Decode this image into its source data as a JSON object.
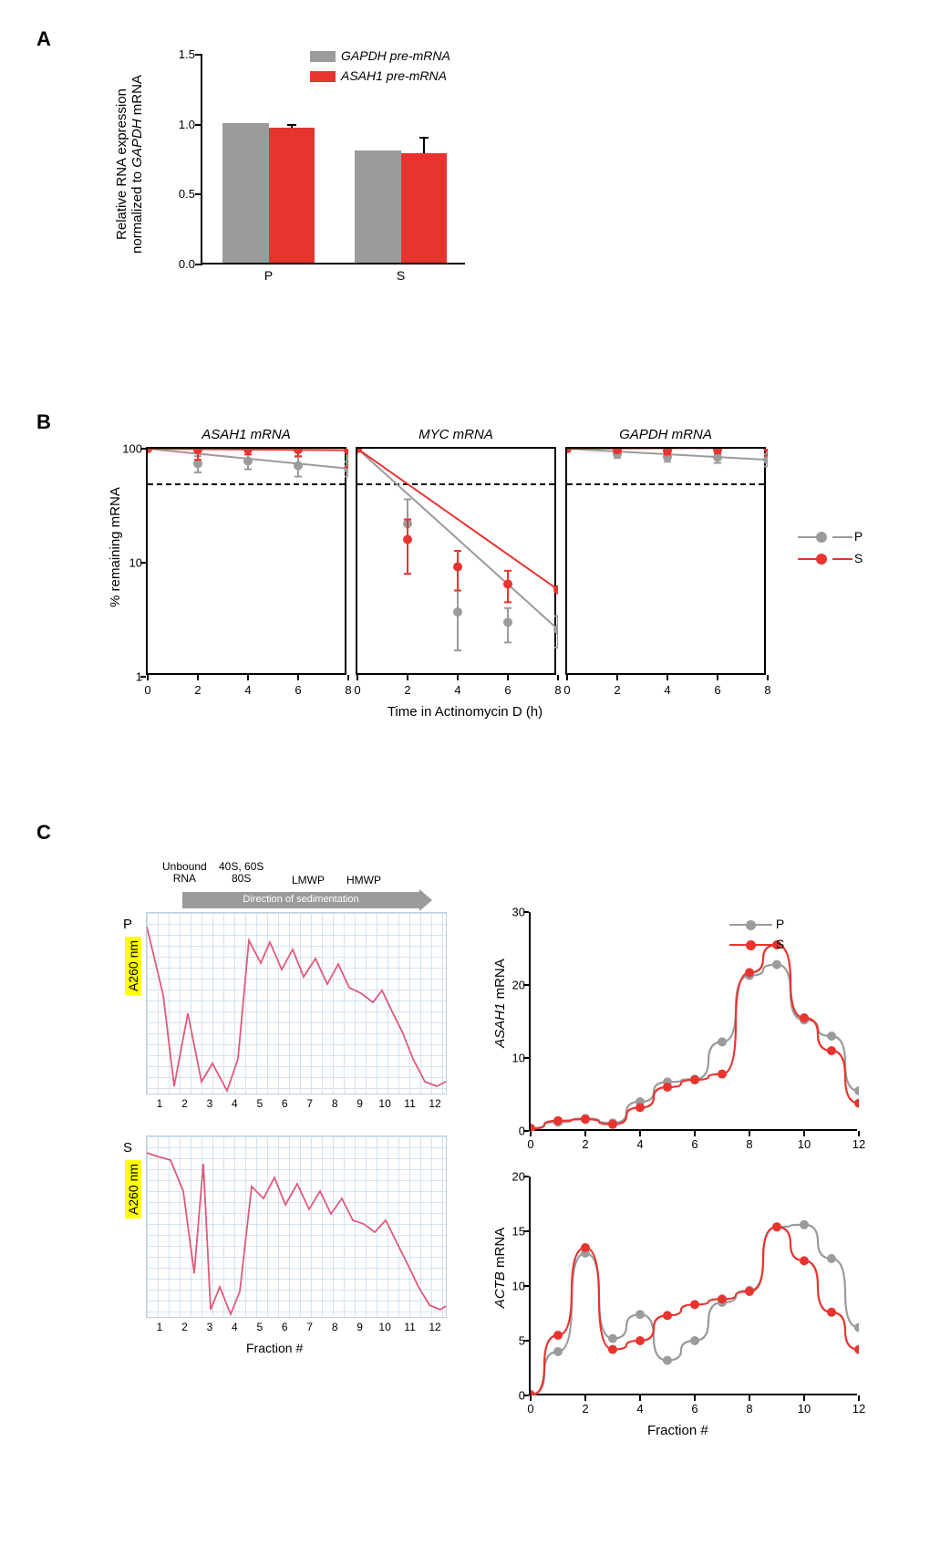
{
  "colors": {
    "gray": "#9b9b9b",
    "red": "#e8342f",
    "black": "#000000",
    "yellow": "#ffff00",
    "gridblue": "#cfe1ef",
    "tracepink": "#e05a7a"
  },
  "panelA": {
    "label": "A",
    "ylabel": "Relative RNA expression\nnormalized to GAPDH mRNA",
    "ylim": [
      0,
      1.5
    ],
    "ytick_step": 0.5,
    "categories": [
      "P",
      "S"
    ],
    "series": [
      {
        "name": "GAPDH pre-mRNA",
        "color": "#9b9b9b",
        "values": [
          1.0,
          0.8
        ],
        "err": [
          0,
          0
        ]
      },
      {
        "name": "ASAH1 pre-mRNA",
        "color": "#e8342f",
        "values": [
          0.965,
          0.78
        ],
        "err": [
          0.025,
          0.12
        ]
      }
    ],
    "bar_width": 0.35
  },
  "panelB": {
    "label": "B",
    "ylabel": "% remaining mRNA",
    "xlabel": "Time in Actinomycin D (h)",
    "xlim": [
      0,
      8
    ],
    "xtick_step": 2,
    "ylim": [
      1,
      100
    ],
    "yticks": [
      1,
      10,
      100
    ],
    "halfLife": 50,
    "legend": [
      {
        "name": "P",
        "color": "#9b9b9b"
      },
      {
        "name": "S",
        "color": "#e8342f"
      }
    ],
    "subplots": [
      {
        "title": "ASAH1 mRNA",
        "series": {
          "P": {
            "x": [
              0,
              2,
              4,
              6,
              8
            ],
            "y": [
              100,
              74,
              78,
              71,
              67
            ],
            "err": [
              0,
              12,
              12,
              14,
              10
            ]
          },
          "S": {
            "x": [
              0,
              2,
              4,
              6,
              8
            ],
            "y": [
              100,
              98,
              99,
              98,
              97
            ],
            "err": [
              0,
              18,
              10,
              12,
              28
            ]
          }
        }
      },
      {
        "title": "MYC mRNA",
        "series": {
          "P": {
            "x": [
              0,
              2,
              4,
              6,
              8
            ],
            "y": [
              100,
              22,
              3.7,
              3.0,
              2.6
            ],
            "err": [
              0,
              14,
              2,
              1,
              0.8
            ]
          },
          "S": {
            "x": [
              0,
              2,
              4,
              6,
              8
            ],
            "y": [
              100,
              16,
              9.2,
              6.5,
              5.8
            ],
            "err": [
              0,
              8,
              3.5,
              2,
              0
            ]
          }
        }
      },
      {
        "title": "GAPDH mRNA",
        "series": {
          "P": {
            "x": [
              0,
              2,
              4,
              6,
              8
            ],
            "y": [
              100,
              90,
              85,
              84,
              80
            ],
            "err": [
              0,
              7,
              8,
              9,
              10
            ]
          },
          "S": {
            "x": [
              0,
              2,
              4,
              6,
              8
            ],
            "y": [
              100,
              98,
              96,
              99,
              102
            ],
            "err": [
              0,
              6,
              7,
              8,
              15
            ]
          }
        }
      }
    ]
  },
  "panelC": {
    "label": "C",
    "topLabels": {
      "unbound": "Unbound\nRNA",
      "subunits": "40S, 60S\n80S",
      "lmwp": "LMWP",
      "hmwp": "HMWP"
    },
    "sedArrowText": "Direction of sedimentation",
    "a260label": "A260 nm",
    "fractionLabel": "Fraction #",
    "fractions": [
      1,
      2,
      3,
      4,
      5,
      6,
      7,
      8,
      9,
      10,
      11,
      12
    ],
    "traces": {
      "P": [
        [
          0,
          15
        ],
        [
          18,
          90
        ],
        [
          30,
          190
        ],
        [
          45,
          110
        ],
        [
          60,
          185
        ],
        [
          72,
          165
        ],
        [
          88,
          195
        ],
        [
          100,
          160
        ],
        [
          112,
          30
        ],
        [
          125,
          55
        ],
        [
          135,
          32
        ],
        [
          148,
          62
        ],
        [
          160,
          40
        ],
        [
          172,
          70
        ],
        [
          185,
          50
        ],
        [
          198,
          78
        ],
        [
          210,
          56
        ],
        [
          222,
          82
        ],
        [
          235,
          88
        ],
        [
          248,
          98
        ],
        [
          258,
          85
        ],
        [
          270,
          110
        ],
        [
          280,
          130
        ],
        [
          292,
          160
        ],
        [
          305,
          185
        ],
        [
          318,
          190
        ],
        [
          328,
          185
        ]
      ],
      "S": [
        [
          0,
          18
        ],
        [
          12,
          22
        ],
        [
          26,
          26
        ],
        [
          40,
          60
        ],
        [
          52,
          150
        ],
        [
          62,
          30
        ],
        [
          70,
          190
        ],
        [
          80,
          165
        ],
        [
          92,
          195
        ],
        [
          102,
          170
        ],
        [
          115,
          55
        ],
        [
          128,
          68
        ],
        [
          140,
          45
        ],
        [
          152,
          75
        ],
        [
          165,
          52
        ],
        [
          178,
          80
        ],
        [
          190,
          60
        ],
        [
          202,
          85
        ],
        [
          214,
          68
        ],
        [
          226,
          92
        ],
        [
          238,
          96
        ],
        [
          250,
          105
        ],
        [
          262,
          92
        ],
        [
          274,
          116
        ],
        [
          286,
          140
        ],
        [
          298,
          165
        ],
        [
          310,
          185
        ],
        [
          322,
          190
        ],
        [
          328,
          186
        ]
      ]
    },
    "lineCharts": [
      {
        "ylabel": "ASAH1 mRNA",
        "ylim": [
          0,
          30
        ],
        "ytick_step": 10,
        "series": {
          "P": [
            0.4,
            1.2,
            1.7,
            1.1,
            4.0,
            6.7,
            7.1,
            12.2,
            21.3,
            22.8,
            15.2,
            13.0,
            5.5
          ],
          "S": [
            0.3,
            1.4,
            1.6,
            0.9,
            3.2,
            6.0,
            7.0,
            7.8,
            21.7,
            25.5,
            15.5,
            11.0,
            3.8
          ]
        }
      },
      {
        "ylabel": "ACTB mRNA",
        "ylim": [
          0,
          20
        ],
        "ytick_step": 5,
        "series": {
          "P": [
            0.1,
            4.0,
            13.0,
            5.2,
            7.4,
            3.2,
            5.0,
            8.5,
            9.6,
            15.4,
            15.6,
            12.5,
            6.2
          ],
          "S": [
            0.0,
            5.5,
            13.5,
            4.2,
            5.0,
            7.3,
            8.3,
            8.8,
            9.5,
            15.4,
            12.3,
            7.6,
            4.2
          ]
        }
      }
    ],
    "legend": [
      {
        "name": "P",
        "color": "#9b9b9b"
      },
      {
        "name": "S",
        "color": "#e8342f"
      }
    ]
  }
}
